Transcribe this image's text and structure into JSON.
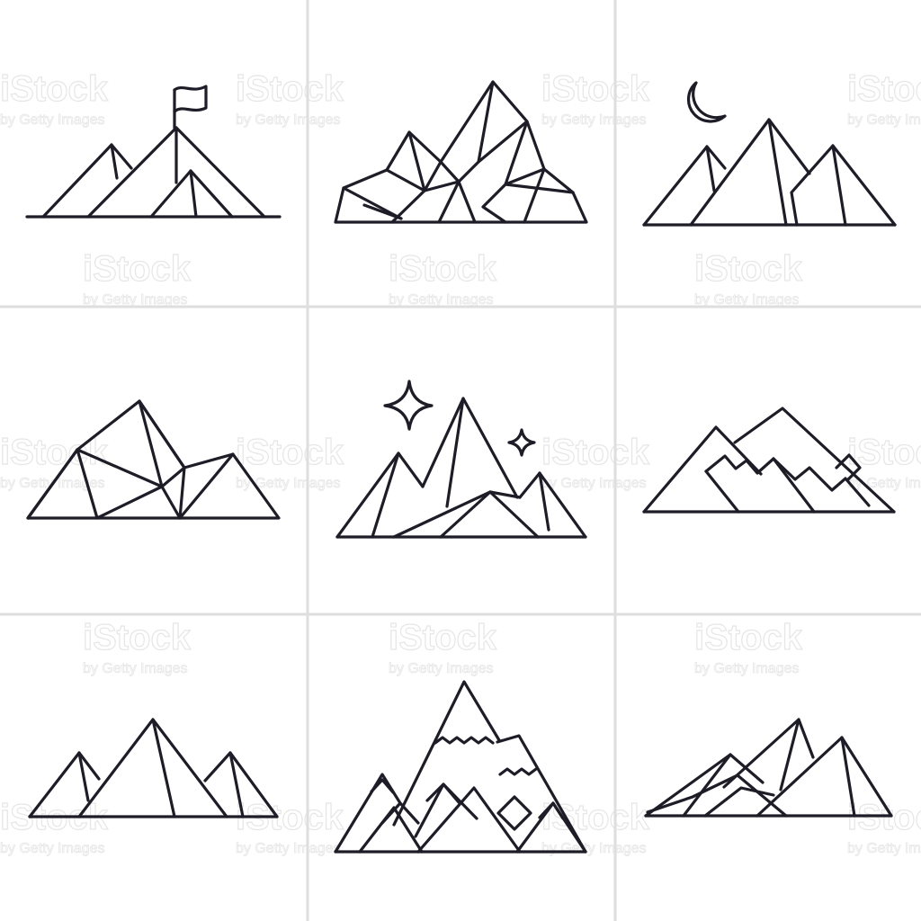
{
  "watermark": {
    "brand": "iStock",
    "tagline": "by Getty Images"
  },
  "colors": {
    "ink": "#1e1c26",
    "divider": "#dedede",
    "background": "#ffffff",
    "watermark": "#e6e6e6"
  },
  "icons": [
    {
      "name": "mountain-flag-icon"
    },
    {
      "name": "faceted-mountain-icon"
    },
    {
      "name": "mountains-moon-icon"
    },
    {
      "name": "geometric-hill-icon"
    },
    {
      "name": "mountains-stars-icon"
    },
    {
      "name": "mountains-zigzag-icon"
    },
    {
      "name": "three-peaks-icon"
    },
    {
      "name": "snowcap-mountains-icon"
    },
    {
      "name": "mountain-ridge-icon"
    }
  ]
}
